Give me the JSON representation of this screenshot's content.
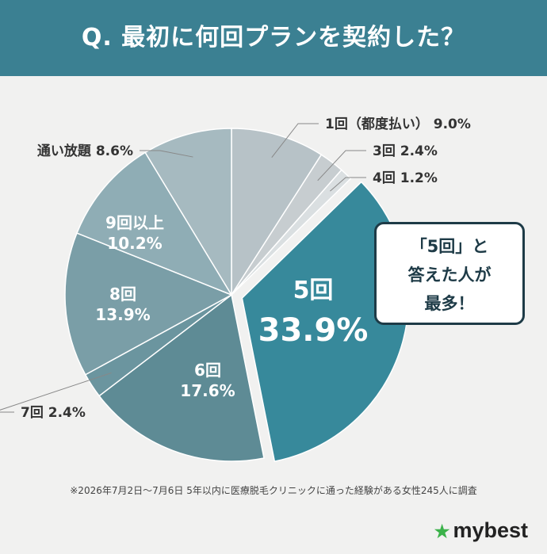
{
  "header": {
    "title": "Q. 最初に何回プランを契約した？"
  },
  "chart_data": {
    "type": "pie",
    "title": "Q. 最初に何回プランを契約した？",
    "unit": "%",
    "slices": [
      {
        "label": "1回（都度払い）",
        "value": 9.0,
        "color": "#b7c2c7"
      },
      {
        "label": "3回",
        "value": 2.4,
        "color": "#c7cdd0"
      },
      {
        "label": "4回",
        "value": 1.2,
        "color": "#dadfe1"
      },
      {
        "label": "5回",
        "value": 33.9,
        "color": "#37899b",
        "highlight": true
      },
      {
        "label": "6回",
        "value": 17.6,
        "color": "#5e8b95"
      },
      {
        "label": "7回",
        "value": 2.4,
        "color": "#6b959f"
      },
      {
        "label": "8回",
        "value": 13.9,
        "color": "#7a9ea7"
      },
      {
        "label": "9回以上",
        "value": 10.2,
        "color": "#8fadb5"
      },
      {
        "label": "通い放題",
        "value": 8.6,
        "color": "#a6bac0"
      }
    ]
  },
  "callout": {
    "lines": [
      "「5回」と",
      "答えた人が",
      "最多！"
    ]
  },
  "footnote": "※2026年7月2日〜7月6日 5年以内に医療脱毛クリニックに通った経験がある女性245人に調査",
  "brand": {
    "name": "mybest",
    "star": "★"
  },
  "colors": {
    "header": "#3b8092",
    "accent": "#37899b",
    "brand_star": "#3bb24a"
  }
}
